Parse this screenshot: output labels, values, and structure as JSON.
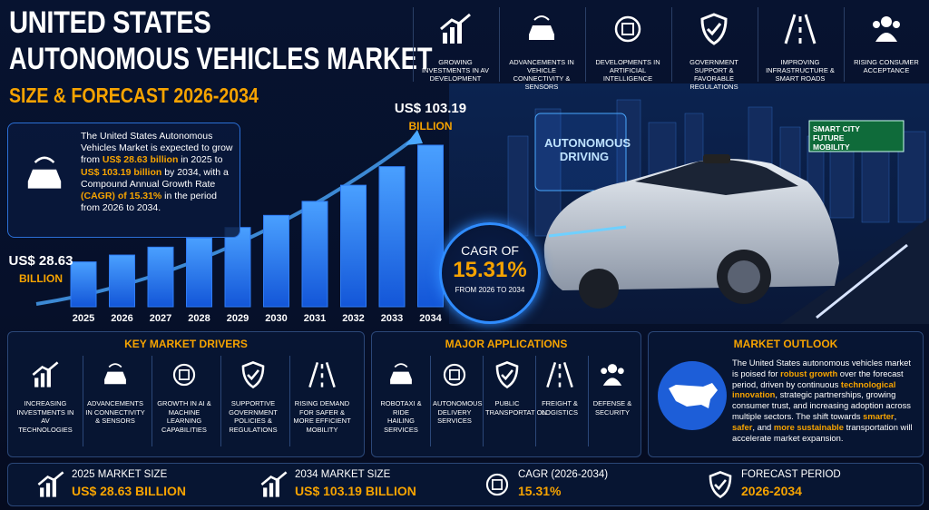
{
  "header": {
    "title_line1": "UNITED STATES",
    "title_line2": "AUTONOMOUS VEHICLES MARKET",
    "subtitle": "SIZE & FORECAST 2026-2034"
  },
  "factors": [
    "GROWING INVESTMENTS IN AV DEVELOPMENT",
    "ADVANCEMENTS IN VEHICLE CONNECTIVITY & SENSORS",
    "DEVELOPMENTS IN ARTIFICIAL INTELLIGENCE",
    "GOVERNMENT SUPPORT & FAVORABLE REGULATIONS",
    "IMPROVING INFRASTRUCTURE & SMART ROADS",
    "RISING CONSUMER ACCEPTANCE"
  ],
  "intro": [
    "The United States Autonomous Vehicles Market is expected to grow from ",
    "US$ 28.63 billion",
    " in 2025 to ",
    "US$ 103.19 billion",
    " by 2034, with a Compound Annual Growth Rate ",
    "(CAGR) of 15.31%",
    " in the period from 2026 to 2034."
  ],
  "chart_data": {
    "type": "bar",
    "categories": [
      "2025",
      "2026",
      "2027",
      "2028",
      "2029",
      "2030",
      "2031",
      "2032",
      "2033",
      "2034"
    ],
    "values": [
      28.63,
      33.01,
      38.07,
      43.9,
      50.62,
      58.37,
      67.3,
      77.61,
      89.49,
      103.19
    ],
    "value_labels": [
      "US$ 28.63",
      null,
      null,
      null,
      null,
      null,
      null,
      null,
      null,
      "US$ 103.19"
    ],
    "unit_label": "BILLION",
    "color": "#2f7cf6"
  },
  "cagr": {
    "heading": "CAGR OF",
    "value": "15.31%",
    "period": "FROM 2026 TO 2034"
  },
  "scene": {
    "sign": "AUTONOMOUS DRIVING",
    "road_sign": "SMART CITY FUTURE MOBILITY"
  },
  "drivers": {
    "title": "KEY MARKET DRIVERS",
    "items": [
      "INCREASING INVESTMENTS IN AV TECHNOLOGIES",
      "ADVANCEMENTS IN CONNECTIVITY & SENSORS",
      "GROWTH IN AI & MACHINE LEARNING CAPABILITIES",
      "SUPPORTIVE GOVERNMENT POLICIES & REGULATIONS",
      "RISING DEMAND FOR SAFER & MORE EFFICIENT MOBILITY"
    ]
  },
  "applications": {
    "title": "MAJOR APPLICATIONS",
    "items": [
      "ROBOTAXI & RIDE HAILING SERVICES",
      "AUTONOMOUS DELIVERY SERVICES",
      "PUBLIC TRANSPORTATION",
      "FREIGHT & LOGISTICS",
      "DEFENSE & SECURITY"
    ]
  },
  "outlook": {
    "title": "MARKET OUTLOOK",
    "parts": [
      "The United States autonomous vehicles market is poised for ",
      "robust growth",
      " over the forecast period, driven by continuous ",
      "technological innovation",
      ", strategic partnerships, growing consumer trust, and increasing adoption across multiple sectors. The shift towards ",
      "smarter",
      ", ",
      "safer",
      ", and ",
      "more sustainable",
      " transportation will accelerate market expansion."
    ]
  },
  "summary": [
    {
      "label": "2025 MARKET SIZE",
      "value": "US$ 28.63 BILLION"
    },
    {
      "label": "2034 MARKET SIZE",
      "value": "US$ 103.19 BILLION"
    },
    {
      "label": "CAGR (2026-2034)",
      "value": "15.31%"
    },
    {
      "label": "FORECAST PERIOD",
      "value": "2026-2034"
    }
  ]
}
